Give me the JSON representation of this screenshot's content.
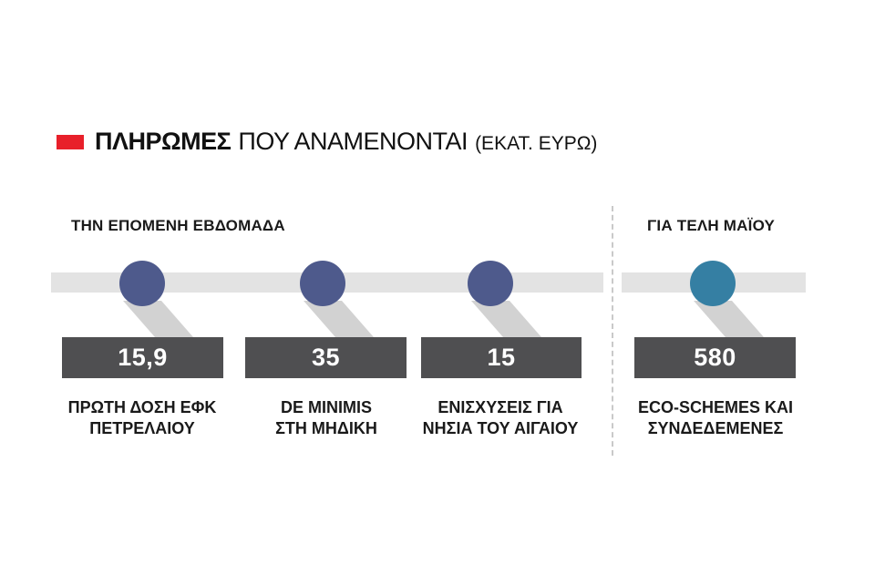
{
  "title": {
    "bold": "ΠΛΗΡΩΜΕΣ",
    "light": "ΠΟΥ ΑΝΑΜΕΝΟΝΤΑΙ",
    "unit": "(ΕΚΑΤ. ΕΥΡΩ)"
  },
  "colors": {
    "accent": "#e8202a",
    "node_week": "#4e5a8c",
    "node_may": "#357fa3",
    "box": "#4f4f51",
    "track": "#e3e3e3"
  },
  "chart_data": {
    "type": "table",
    "title": "ΠΛΗΡΩΜΕΣ ΠΟΥ ΑΝΑΜΕΝΟΝΤΑΙ (ΕΚΑΤ. ΕΥΡΩ)",
    "groups": [
      {
        "label": "ΤΗΝ ΕΠΟΜΕΝΗ ΕΒΔΟΜΑΔΑ",
        "items": [
          {
            "value_label": "15,9",
            "value": 15.9,
            "caption": [
              "ΠΡΩΤΗ ΔΟΣΗ ΕΦΚ",
              "ΠΕΤΡΕΛΑΙΟΥ"
            ]
          },
          {
            "value_label": "35",
            "value": 35,
            "caption": [
              "DE MINIMIS",
              "ΣΤΗ ΜΗΔΙΚΗ"
            ]
          },
          {
            "value_label": "15",
            "value": 15,
            "caption": [
              "ΕΝΙΣΧΥΣΕΙΣ ΓΙΑ",
              "ΝΗΣΙΑ ΤΟΥ ΑΙΓΑΙΟΥ"
            ]
          }
        ]
      },
      {
        "label": "ΓΙΑ ΤΕΛΗ ΜΑΪΟΥ",
        "items": [
          {
            "value_label": "580",
            "value": 580,
            "caption": [
              "ECO-SCHEMES ΚΑΙ",
              "ΣΥΝΔΕΔΕΜΕΝΕΣ"
            ]
          }
        ]
      }
    ]
  }
}
